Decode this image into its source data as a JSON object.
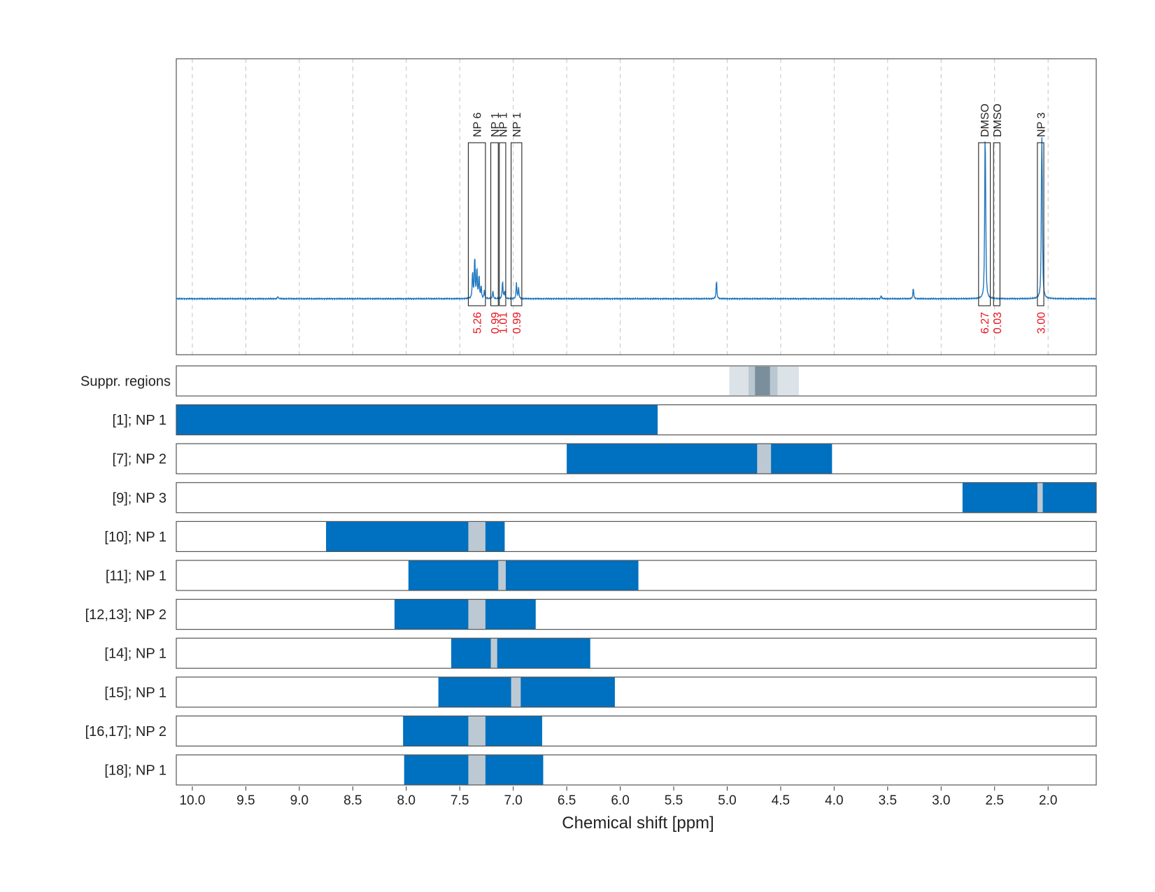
{
  "chart_data": {
    "type": "line",
    "xlabel": "Chemical shift [ppm]",
    "xlim": [
      10.15,
      1.55
    ],
    "x_reversed": true,
    "xticks": [
      "10.0",
      "9.5",
      "9.0",
      "8.5",
      "8.0",
      "7.5",
      "7.0",
      "6.5",
      "6.0",
      "5.5",
      "5.0",
      "4.5",
      "4.0",
      "3.5",
      "3.0",
      "2.5",
      "2.0"
    ],
    "grid": "vertical dashed",
    "colors": {
      "spectrum": "#1f77c0",
      "bar": "#0070c0",
      "suppressed": "#bcc9d2",
      "suppr_light": "#dbe2e8",
      "suppr_mid": "#b9c7d1",
      "suppr_dark": "#7a8e9c",
      "integral": "#e8141c",
      "frame": "#555555",
      "grid": "#c4c4c4"
    },
    "spectrum_peaks": [
      {
        "x": 9.2,
        "y": 0.015
      },
      {
        "x": 7.36,
        "y": 0.28
      },
      {
        "x": 7.34,
        "y": 0.2
      },
      {
        "x": 7.32,
        "y": 0.15
      },
      {
        "x": 7.38,
        "y": 0.18
      },
      {
        "x": 7.3,
        "y": 0.08
      },
      {
        "x": 7.27,
        "y": 0.05
      },
      {
        "x": 7.19,
        "y": 0.05
      },
      {
        "x": 7.1,
        "y": 0.12
      },
      {
        "x": 7.08,
        "y": 0.05
      },
      {
        "x": 6.97,
        "y": 0.1
      },
      {
        "x": 6.95,
        "y": 0.07
      },
      {
        "x": 5.1,
        "y": 0.12
      },
      {
        "x": 3.56,
        "y": 0.02
      },
      {
        "x": 3.26,
        "y": 0.07
      },
      {
        "x": 2.59,
        "y": 0.75
      },
      {
        "x": 2.585,
        "y": 0.55
      },
      {
        "x": 2.06,
        "y": 0.84
      },
      {
        "x": 2.055,
        "y": 0.5
      }
    ],
    "peak_groups": [
      {
        "label": "NP 6",
        "from": 7.42,
        "to": 7.26,
        "integral": "5.26"
      },
      {
        "label": "NP 1",
        "from": 7.21,
        "to": 7.14,
        "integral": "0.99"
      },
      {
        "label": "NP 1",
        "from": 7.13,
        "to": 7.07,
        "integral": "1.01"
      },
      {
        "label": "NP 1",
        "from": 7.02,
        "to": 6.92,
        "integral": "0.99"
      },
      {
        "label": "DMSO",
        "from": 2.65,
        "to": 2.54,
        "integral": "6.27"
      },
      {
        "label": "DMSO",
        "from": 2.51,
        "to": 2.45,
        "integral": "0.03"
      },
      {
        "label": "NP 3",
        "from": 2.1,
        "to": 2.04,
        "integral": "3.00"
      }
    ],
    "suppression": {
      "label": "Suppr. regions",
      "bands": [
        {
          "from": 4.98,
          "to": 4.33,
          "shade": "light"
        },
        {
          "from": 4.8,
          "to": 4.53,
          "shade": "mid"
        },
        {
          "from": 4.74,
          "to": 4.6,
          "shade": "dark"
        }
      ]
    },
    "rows": [
      {
        "label": "[1]; NP 1",
        "bars": [
          [
            10.15,
            5.65
          ]
        ],
        "gaps": []
      },
      {
        "label": "[7]; NP 2",
        "bars": [
          [
            6.5,
            4.02
          ]
        ],
        "gaps": [
          [
            4.72,
            4.59
          ]
        ]
      },
      {
        "label": "[9]; NP 3",
        "bars": [
          [
            2.8,
            1.55
          ]
        ],
        "gaps": [
          [
            2.1,
            2.05
          ]
        ]
      },
      {
        "label": "[10]; NP 1",
        "bars": [
          [
            8.75,
            7.08
          ]
        ],
        "gaps": [
          [
            7.42,
            7.26
          ]
        ]
      },
      {
        "label": "[11]; NP 1",
        "bars": [
          [
            7.98,
            5.83
          ]
        ],
        "gaps": [
          [
            7.14,
            7.07
          ]
        ]
      },
      {
        "label": "[12,13]; NP 2",
        "bars": [
          [
            8.11,
            6.79
          ]
        ],
        "gaps": [
          [
            7.42,
            7.26
          ]
        ]
      },
      {
        "label": "[14]; NP 1",
        "bars": [
          [
            7.58,
            6.28
          ]
        ],
        "gaps": [
          [
            7.21,
            7.15
          ]
        ]
      },
      {
        "label": "[15]; NP 1",
        "bars": [
          [
            7.7,
            6.05
          ]
        ],
        "gaps": [
          [
            7.02,
            6.93
          ]
        ]
      },
      {
        "label": "[16,17]; NP 2",
        "bars": [
          [
            8.03,
            6.73
          ]
        ],
        "gaps": [
          [
            7.42,
            7.26
          ]
        ]
      },
      {
        "label": "[18]; NP 1",
        "bars": [
          [
            8.02,
            6.72
          ]
        ],
        "gaps": [
          [
            7.42,
            7.26
          ]
        ]
      }
    ]
  }
}
